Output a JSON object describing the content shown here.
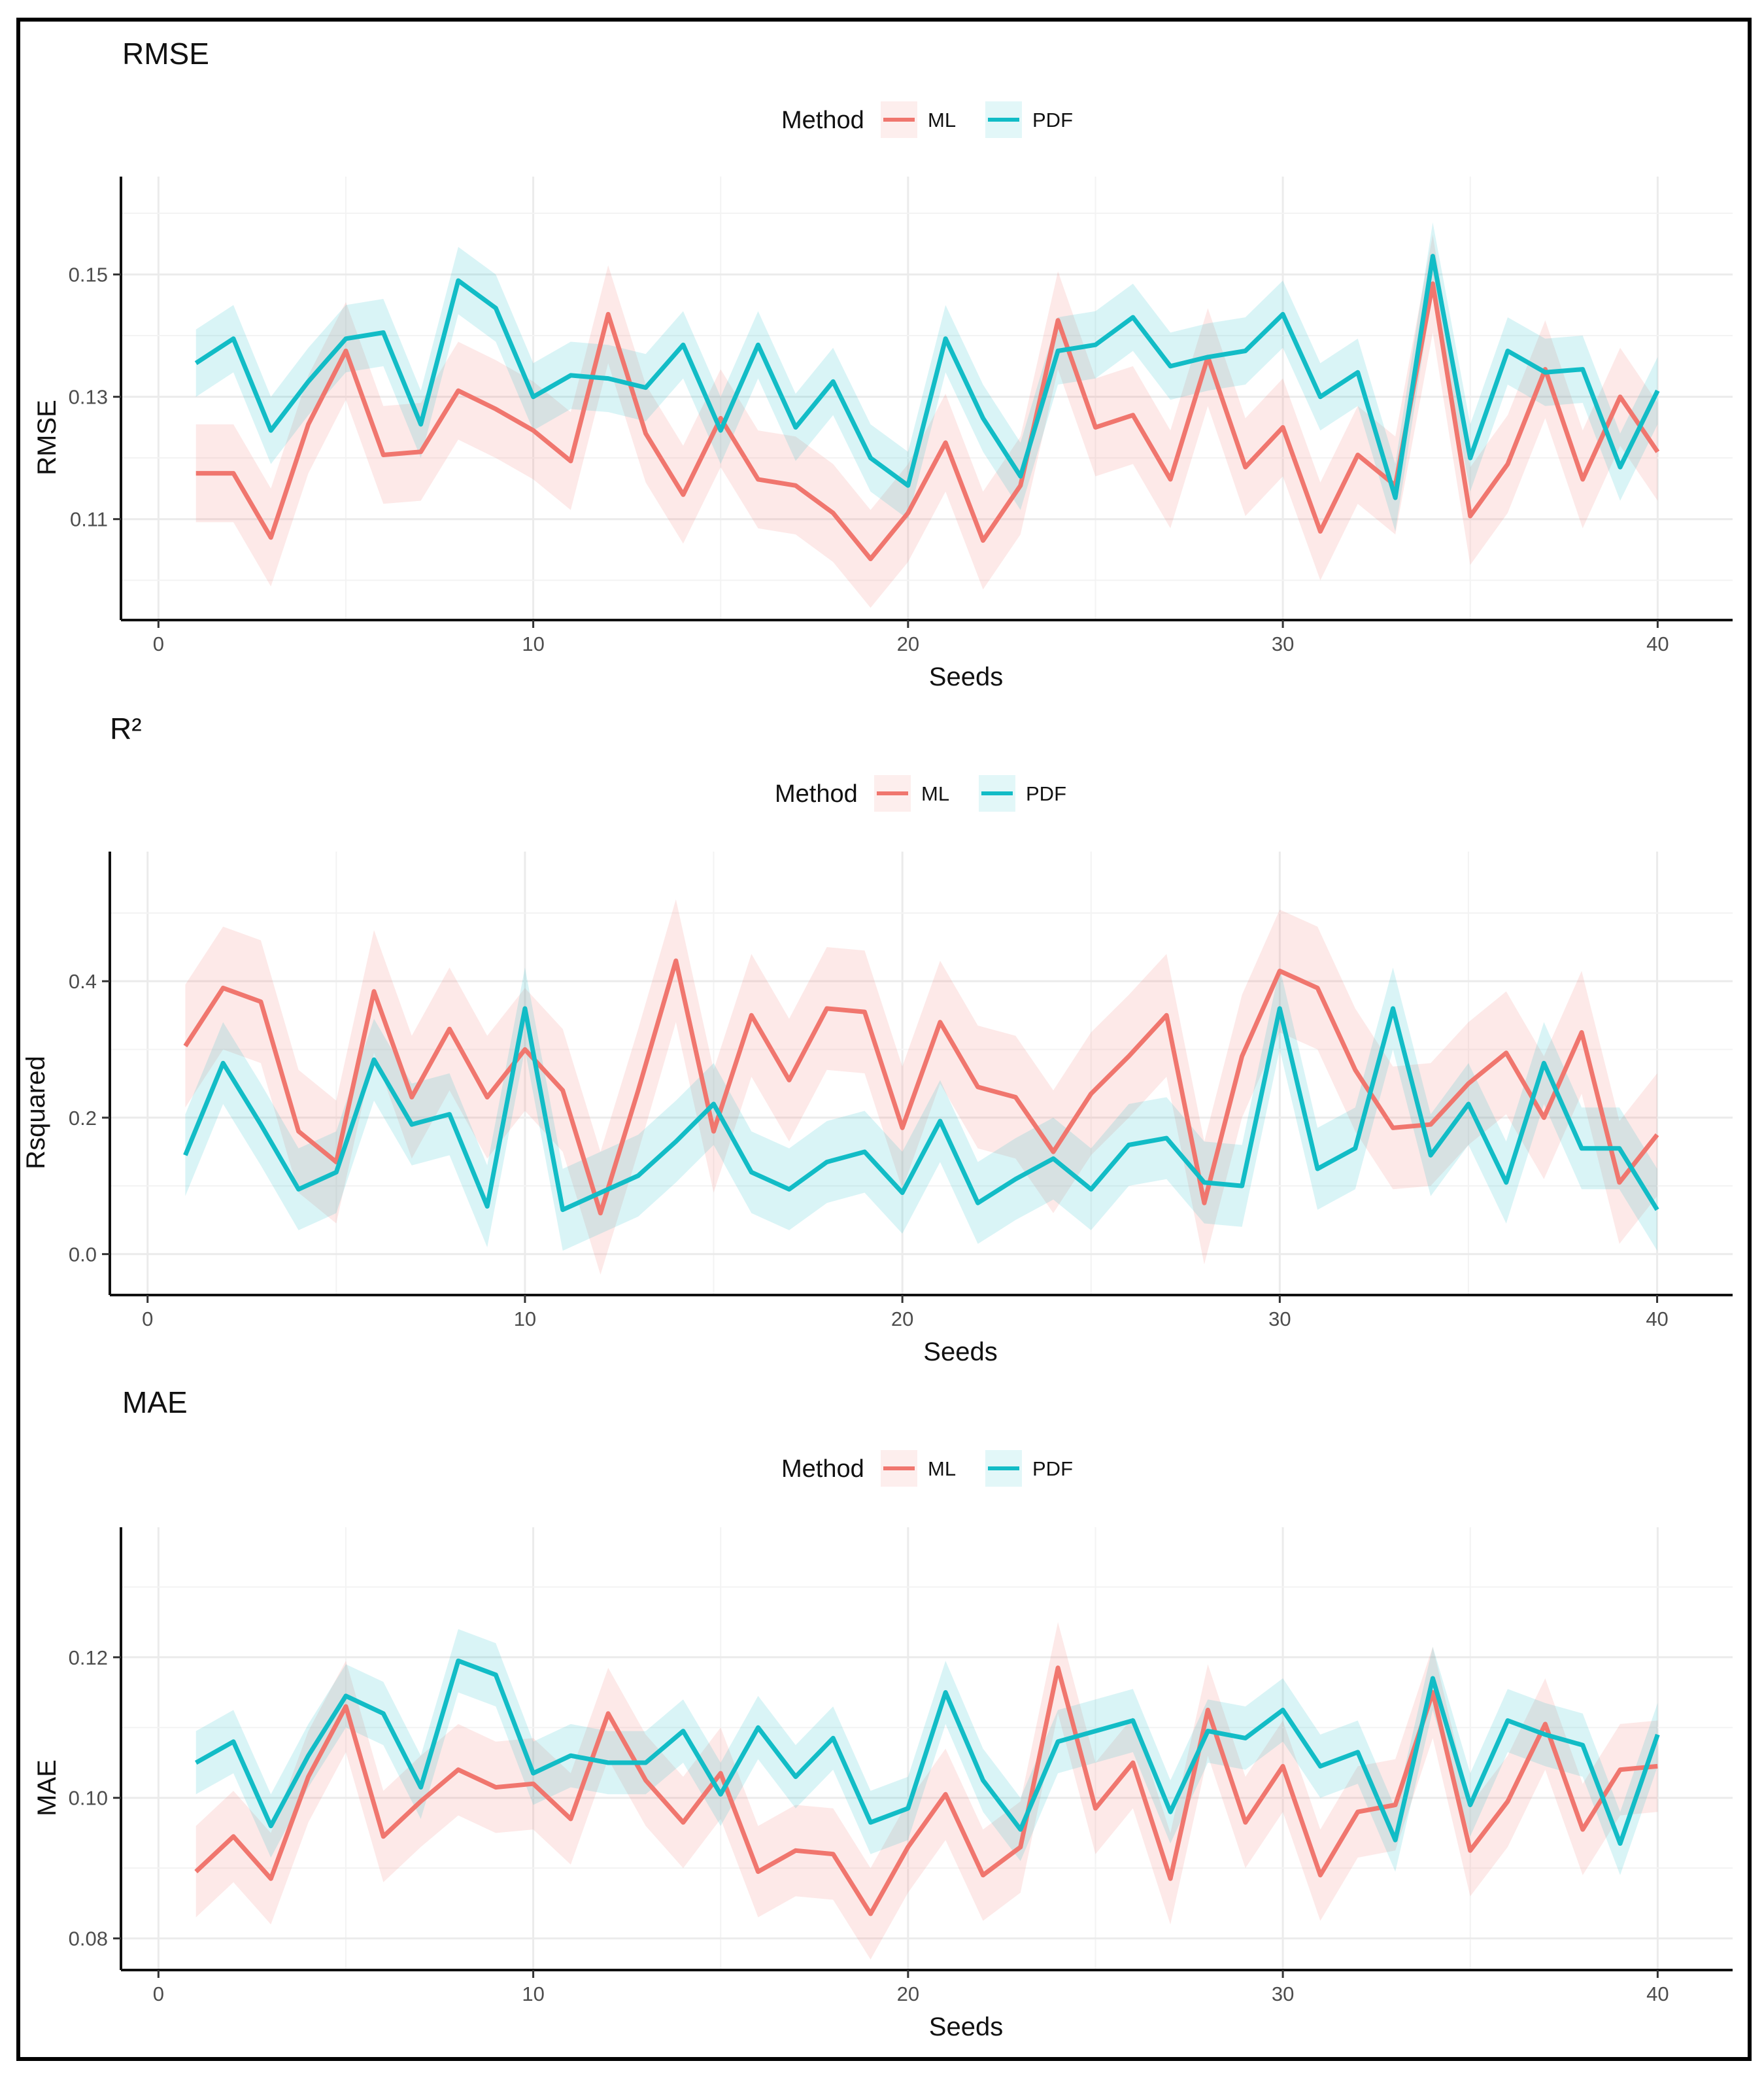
{
  "colors": {
    "ML": "#F0766E",
    "PDF": "#12BCC6"
  },
  "chart_data": [
    {
      "type": "line",
      "title": "RMSE",
      "xlabel": "Seeds",
      "ylabel": "RMSE",
      "legend_title": "Method",
      "legend_position": "top",
      "xlim": [
        -1,
        42
      ],
      "ylim": [
        0.0935,
        0.166
      ],
      "xticks": [
        0,
        10,
        20,
        30,
        40
      ],
      "yticks": [
        0.11,
        0.13,
        0.15
      ],
      "ytick_labels": [
        "0.11",
        "0.13",
        "0.15"
      ],
      "x": [
        1,
        2,
        3,
        4,
        5,
        6,
        7,
        8,
        9,
        10,
        11,
        12,
        13,
        14,
        15,
        16,
        17,
        18,
        19,
        20,
        21,
        22,
        23,
        24,
        25,
        26,
        27,
        28,
        29,
        30,
        31,
        32,
        33,
        34,
        35,
        36,
        37,
        38,
        39,
        40
      ],
      "series": [
        {
          "name": "ML",
          "values": [
            0.1175,
            0.1175,
            0.107,
            0.1255,
            0.1375,
            0.1205,
            0.121,
            0.131,
            0.128,
            0.1245,
            0.1195,
            0.1435,
            0.124,
            0.114,
            0.1265,
            0.1165,
            0.1155,
            0.111,
            0.1035,
            0.111,
            0.1225,
            0.1065,
            0.1155,
            0.1425,
            0.125,
            0.127,
            0.1165,
            0.1365,
            0.1185,
            0.125,
            0.108,
            0.1205,
            0.1155,
            0.1485,
            0.1105,
            0.119,
            0.1345,
            0.1165,
            0.13,
            0.121
          ],
          "band": 0.008
        },
        {
          "name": "PDF",
          "values": [
            0.1355,
            0.1395,
            0.1245,
            0.1325,
            0.1395,
            0.1405,
            0.1255,
            0.149,
            0.1445,
            0.13,
            0.1335,
            0.133,
            0.1315,
            0.1385,
            0.1245,
            0.1385,
            0.125,
            0.1325,
            0.12,
            0.1155,
            0.1395,
            0.1265,
            0.117,
            0.1375,
            0.1385,
            0.143,
            0.135,
            0.1365,
            0.1375,
            0.1435,
            0.13,
            0.134,
            0.1135,
            0.153,
            0.12,
            0.1375,
            0.134,
            0.1345,
            0.1185,
            0.131
          ],
          "band": 0.0055
        }
      ]
    },
    {
      "type": "line",
      "title": "R²",
      "xlabel": "Seeds",
      "ylabel": "Rsquared",
      "legend_title": "Method",
      "legend_position": "top",
      "xlim": [
        -1,
        42
      ],
      "ylim": [
        -0.06,
        0.59
      ],
      "xticks": [
        0,
        10,
        20,
        30,
        40
      ],
      "yticks": [
        0.0,
        0.2,
        0.4
      ],
      "ytick_labels": [
        "0.0",
        "0.2",
        "0.4"
      ],
      "x": [
        1,
        2,
        3,
        4,
        5,
        6,
        7,
        8,
        9,
        10,
        11,
        12,
        13,
        14,
        15,
        16,
        17,
        18,
        19,
        20,
        21,
        22,
        23,
        24,
        25,
        26,
        27,
        28,
        29,
        30,
        31,
        32,
        33,
        34,
        35,
        36,
        37,
        38,
        39,
        40
      ],
      "series": [
        {
          "name": "ML",
          "values": [
            0.305,
            0.39,
            0.37,
            0.18,
            0.135,
            0.385,
            0.23,
            0.33,
            0.23,
            0.3,
            0.24,
            0.06,
            0.24,
            0.43,
            0.18,
            0.35,
            0.255,
            0.36,
            0.355,
            0.185,
            0.34,
            0.245,
            0.23,
            0.15,
            0.235,
            0.29,
            0.35,
            0.075,
            0.29,
            0.415,
            0.39,
            0.27,
            0.185,
            0.19,
            0.25,
            0.295,
            0.2,
            0.325,
            0.105,
            0.175
          ],
          "band": 0.09
        },
        {
          "name": "PDF",
          "values": [
            0.145,
            0.28,
            0.19,
            0.095,
            0.12,
            0.285,
            0.19,
            0.205,
            0.07,
            0.36,
            0.065,
            0.09,
            0.115,
            0.165,
            0.22,
            0.12,
            0.095,
            0.135,
            0.15,
            0.09,
            0.195,
            0.075,
            0.11,
            0.14,
            0.095,
            0.16,
            0.17,
            0.105,
            0.1,
            0.36,
            0.125,
            0.155,
            0.36,
            0.145,
            0.22,
            0.105,
            0.28,
            0.155,
            0.155,
            0.065
          ],
          "band": 0.06
        }
      ]
    },
    {
      "type": "line",
      "title": "MAE",
      "xlabel": "Seeds",
      "ylabel": "MAE",
      "legend_title": "Method",
      "legend_position": "top",
      "xlim": [
        -1,
        42
      ],
      "ylim": [
        0.0755,
        0.1385
      ],
      "xticks": [
        0,
        10,
        20,
        30,
        40
      ],
      "yticks": [
        0.08,
        0.1,
        0.12
      ],
      "ytick_labels": [
        "0.08",
        "0.10",
        "0.12"
      ],
      "x": [
        1,
        2,
        3,
        4,
        5,
        6,
        7,
        8,
        9,
        10,
        11,
        12,
        13,
        14,
        15,
        16,
        17,
        18,
        19,
        20,
        21,
        22,
        23,
        24,
        25,
        26,
        27,
        28,
        29,
        30,
        31,
        32,
        33,
        34,
        35,
        36,
        37,
        38,
        39,
        40
      ],
      "series": [
        {
          "name": "ML",
          "values": [
            0.0895,
            0.0945,
            0.0885,
            0.103,
            0.113,
            0.0945,
            0.0995,
            0.104,
            0.1015,
            0.102,
            0.097,
            0.112,
            0.1025,
            0.0965,
            0.1035,
            0.0895,
            0.0925,
            0.092,
            0.0835,
            0.093,
            0.1005,
            0.089,
            0.093,
            0.1185,
            0.0985,
            0.105,
            0.0885,
            0.1125,
            0.0965,
            0.1045,
            0.089,
            0.098,
            0.099,
            0.115,
            0.0925,
            0.0995,
            0.1105,
            0.0955,
            0.104,
            0.1045
          ],
          "band": 0.0065
        },
        {
          "name": "PDF",
          "values": [
            0.105,
            0.108,
            0.096,
            0.106,
            0.1145,
            0.112,
            0.1015,
            0.1195,
            0.1175,
            0.1035,
            0.106,
            0.105,
            0.105,
            0.1095,
            0.1005,
            0.11,
            0.103,
            0.1085,
            0.0965,
            0.0985,
            0.115,
            0.1025,
            0.0955,
            0.108,
            0.1095,
            0.111,
            0.098,
            0.1095,
            0.1085,
            0.1125,
            0.1045,
            0.1065,
            0.094,
            0.117,
            0.099,
            0.111,
            0.109,
            0.1075,
            0.0935,
            0.109
          ],
          "band": 0.0045
        }
      ]
    }
  ]
}
